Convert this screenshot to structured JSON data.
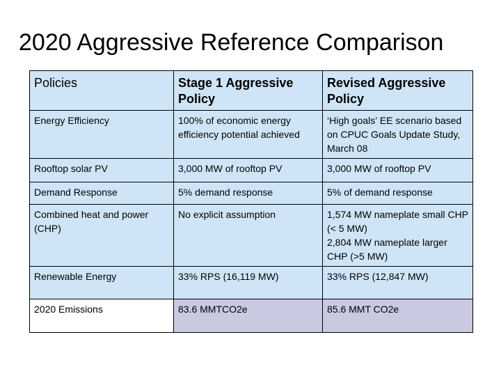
{
  "title": "2020 Aggressive Reference Comparison",
  "table": {
    "headers": [
      "Policies",
      "Stage 1 Aggressive Policy",
      "Revised Aggressive Policy"
    ],
    "rows": [
      {
        "policy": "Energy Efficiency",
        "stage1": "100% of economic energy efficiency potential achieved",
        "revised": "‘High goals’ EE scenario based on CPUC Goals Update Study, March 08"
      },
      {
        "policy": "Rooftop solar PV",
        "stage1": "3,000 MW of rooftop PV",
        "revised": "3,000 MW of rooftop PV"
      },
      {
        "policy": "Demand Response",
        "stage1": "5% demand response",
        "revised": "5% of demand response"
      },
      {
        "policy": "Combined heat and power (CHP)",
        "stage1": "No explicit assumption",
        "revised_lines": [
          "1,574 MW nameplate small CHP (< 5 MW)",
          "2,804 MW nameplate larger CHP (>5 MW)"
        ]
      },
      {
        "policy": "Renewable Energy",
        "stage1": "33% RPS (16,119 MW)",
        "revised": "33% RPS (12,847 MW)"
      },
      {
        "policy": "2020 Emissions",
        "stage1": "83.6 MMTCO2e",
        "revised": "85.6 MMT CO2e"
      }
    ]
  },
  "colors": {
    "cell_blue": "#cfe5f7",
    "emissions_purple": "#c9c9e2"
  }
}
